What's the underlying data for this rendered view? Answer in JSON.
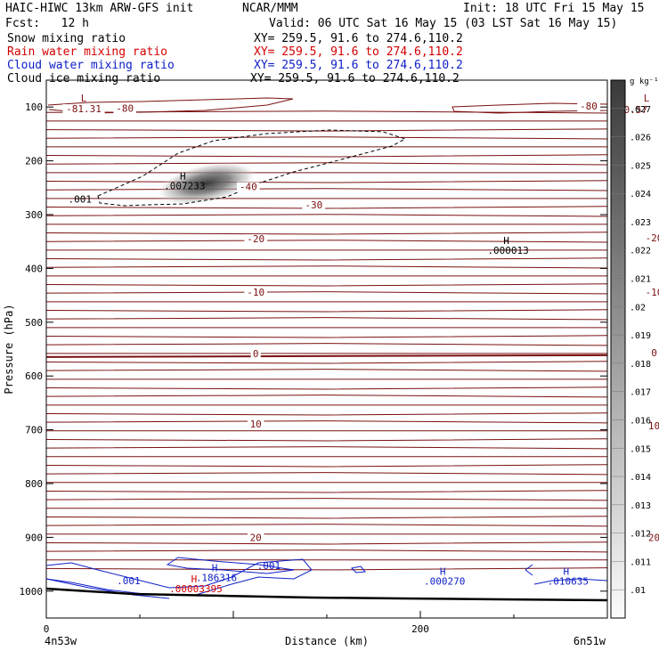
{
  "header": {
    "model": "HAIC-HIWC 13km ARW-GFS init",
    "org": "NCAR/MMM",
    "init": "Init: 18 UTC Fri 15 May 15",
    "fcst": "Fcst:   12 h",
    "valid": "Valid: 06 UTC Sat 16 May 15 (03 LST Sat 16 May 15)",
    "fields": [
      {
        "label": "Snow mixing ratio",
        "xy": "XY= 259.5, 91.6 to 274.6,110.2",
        "color": "#000000"
      },
      {
        "label": "Rain water mixing ratio",
        "xy": "XY= 259.5, 91.6 to 274.6,110.2",
        "color": "#d40000"
      },
      {
        "label": "Cloud water mixing ratio",
        "xy": "XY= 259.5, 91.6 to 274.6,110.2",
        "color": "#1020c8"
      },
      {
        "label": "Cloud ice mixing ratio",
        "xy": "XY= 259.5, 91.6 to 274.6,110.2",
        "color": "#000000"
      }
    ]
  },
  "chart_data": {
    "type": "contour cross-section",
    "xlabel": "Distance (km)",
    "ylabel": "Pressure (hPa)",
    "x_ticks": [
      0,
      200
    ],
    "xlim": [
      0,
      300
    ],
    "y_ticks": [
      100,
      200,
      300,
      400,
      500,
      600,
      700,
      800,
      900,
      1000
    ],
    "ylim": [
      1050,
      50
    ],
    "left_endpoint": "4n53w",
    "right_endpoint": "6n51w",
    "colorbar": {
      "unit": "g kg⁻¹",
      "ticks": [
        ".01",
        ".011",
        ".012",
        ".013",
        ".014",
        ".015",
        ".016",
        ".017",
        ".018",
        ".019",
        ".02",
        ".021",
        ".022",
        ".023",
        ".024",
        ".025",
        ".026",
        ".027"
      ]
    },
    "temperature_labels": [
      {
        "text": "-81.31",
        "x": 20,
        "p": 108
      },
      {
        "text": "-80",
        "x": 42,
        "p": 107
      },
      {
        "text": "-80",
        "x": 290,
        "p": 103
      },
      {
        "text": "-80.57",
        "x": 312,
        "p": 110
      },
      {
        "text": "-40",
        "x": 108,
        "p": 253
      },
      {
        "text": "-30",
        "x": 143,
        "p": 287
      },
      {
        "text": "-20",
        "x": 112,
        "p": 350
      },
      {
        "text": "-20",
        "x": 325,
        "p": 348
      },
      {
        "text": "-10",
        "x": 112,
        "p": 449
      },
      {
        "text": "-10",
        "x": 325,
        "p": 449
      },
      {
        "text": "0",
        "x": 112,
        "p": 563
      },
      {
        "text": "0",
        "x": 325,
        "p": 562
      },
      {
        "text": "10",
        "x": 112,
        "p": 694
      },
      {
        "text": "10",
        "x": 325,
        "p": 697
      },
      {
        "text": "20",
        "x": 112,
        "p": 905
      },
      {
        "text": "20",
        "x": 325,
        "p": 905
      }
    ],
    "extrema": [
      {
        "letter": "L",
        "value": "",
        "x": 20,
        "p": 90,
        "color": "#8b1a1a"
      },
      {
        "letter": "L",
        "value": "",
        "x": 321,
        "p": 90,
        "color": "#8b1a1a"
      },
      {
        "letter": "H",
        "value": ".007233",
        "x": 73,
        "p": 235,
        "color": "#000000"
      },
      {
        "letter": "H",
        "value": ".000013",
        "x": 246,
        "p": 355,
        "color": "#000000"
      },
      {
        "letter": "H",
        "value": ".00003395",
        "x": 79,
        "p": 984,
        "color": "#d40000"
      },
      {
        "letter": "H",
        "value": ".186316",
        "x": 90,
        "p": 963,
        "color": "#1020c8"
      },
      {
        "letter": "H",
        "value": ".000270",
        "x": 212,
        "p": 970,
        "color": "#1020c8"
      },
      {
        "letter": "H",
        "value": ".010635",
        "x": 278,
        "p": 970,
        "color": "#1020c8"
      }
    ],
    "contour_labels": [
      {
        "text": ".001",
        "x": 18,
        "p": 278,
        "color": "#000000"
      },
      {
        "text": ".001",
        "x": 44,
        "p": 987,
        "color": "#1020c8"
      },
      {
        "text": ".001",
        "x": 119,
        "p": 959,
        "color": "#1020c8"
      }
    ],
    "snow_max": 0.007233,
    "snow_center": {
      "x": 80,
      "p": 240
    },
    "isotherm_levels": [
      -80,
      -70,
      -60,
      -50,
      -40,
      -30,
      -20,
      -10,
      0,
      10,
      20
    ]
  }
}
